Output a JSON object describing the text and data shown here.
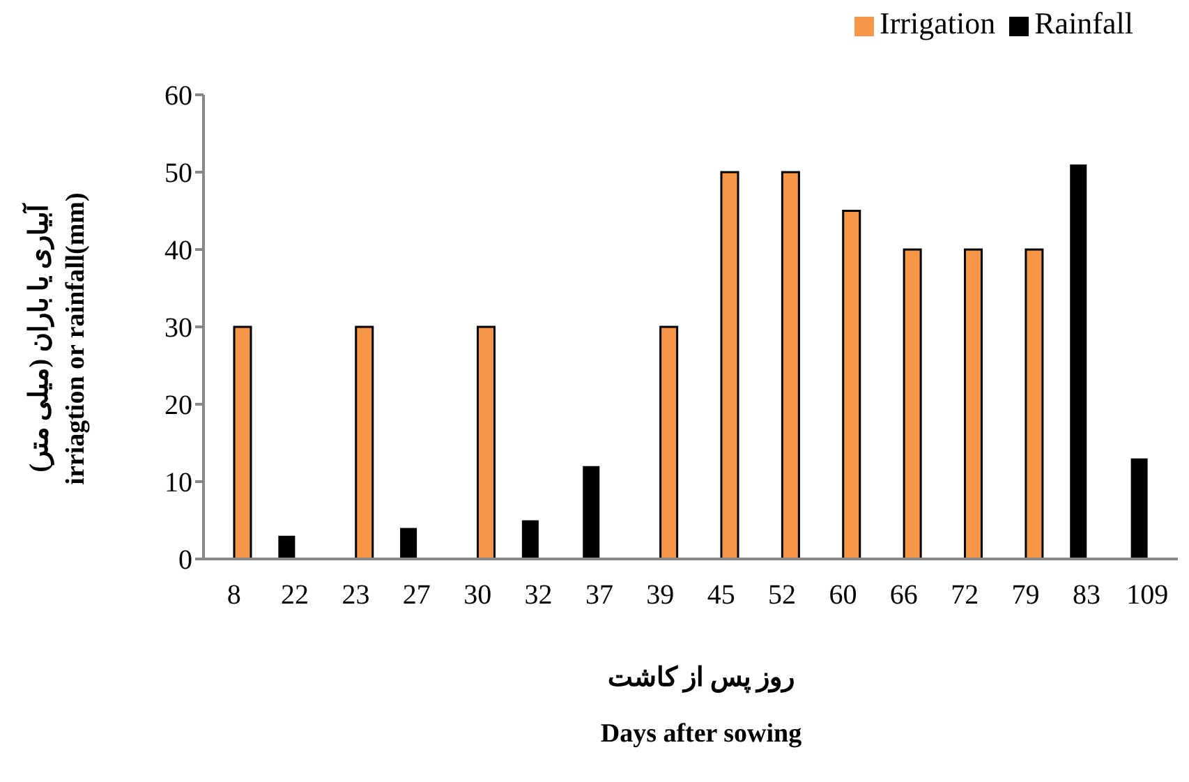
{
  "chart_data": {
    "type": "bar",
    "ylabel": "آبیاری یا باران (میلی متر)\nirriagtion or rainfall(mm)",
    "xlabel": "روز پس از کاشت\nDays after sowing",
    "categories": [
      "8",
      "22",
      "23",
      "27",
      "30",
      "32",
      "37",
      "39",
      "45",
      "52",
      "60",
      "66",
      "72",
      "79",
      "83",
      "109"
    ],
    "series": [
      {
        "name": "Rainfall",
        "color": "#000000",
        "values": [
          null,
          3,
          null,
          4,
          null,
          5,
          12,
          null,
          null,
          null,
          null,
          null,
          null,
          null,
          51,
          13
        ]
      },
      {
        "name": "Irrigation",
        "color": "#f79646",
        "values": [
          30,
          null,
          30,
          null,
          30,
          null,
          null,
          30,
          50,
          50,
          45,
          40,
          40,
          40,
          null,
          null
        ]
      }
    ],
    "ylim": [
      0,
      60
    ],
    "yticks": [
      0,
      10,
      20,
      30,
      40,
      50,
      60
    ],
    "grid": false,
    "legend": "top right"
  }
}
